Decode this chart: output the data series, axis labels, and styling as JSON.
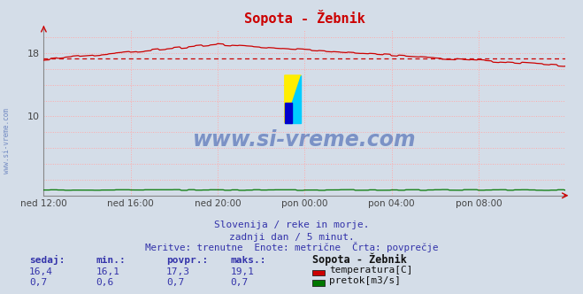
{
  "title": "Sopota - Žebnik",
  "bg_color": "#d4dde8",
  "plot_bg_color": "#d4dde8",
  "grid_color": "#ffaaaa",
  "xlabel": "",
  "ylabel": "",
  "xlim": [
    0,
    288
  ],
  "ylim": [
    0,
    21
  ],
  "ytick_vals": [
    10,
    18
  ],
  "ytick_labels": [
    "10",
    "18"
  ],
  "xtick_labels": [
    "ned 12:00",
    "ned 16:00",
    "ned 20:00",
    "pon 00:00",
    "pon 04:00",
    "pon 08:00"
  ],
  "xtick_positions": [
    0,
    48,
    96,
    144,
    192,
    240
  ],
  "temp_color": "#cc0000",
  "flow_color": "#007700",
  "avg_value": 17.3,
  "watermark": "www.si-vreme.com",
  "watermark_color": "#3355aa",
  "subtitle1": "Slovenija / reke in morje.",
  "subtitle2": "zadnji dan / 5 minut.",
  "subtitle3": "Meritve: trenutne  Enote: metrične  Črta: povprečje",
  "stat_headers": [
    "sedaj:",
    "min.:",
    "povpr.:",
    "maks.:"
  ],
  "stat_vals_temp": [
    "16,4",
    "16,1",
    "17,3",
    "19,1"
  ],
  "stat_vals_flow": [
    "0,7",
    "0,6",
    "0,7",
    "0,7"
  ],
  "legend_title": "Sopota - Žebnik",
  "legend_items": [
    "temperatura[C]",
    "pretok[m3/s]"
  ],
  "legend_colors": [
    "#cc0000",
    "#007700"
  ],
  "text_color": "#3333cc",
  "label_color": "#3333aa",
  "tick_color": "#444444",
  "logo_yellow": "#ffee00",
  "logo_cyan": "#00ccff",
  "logo_blue": "#0000cc"
}
